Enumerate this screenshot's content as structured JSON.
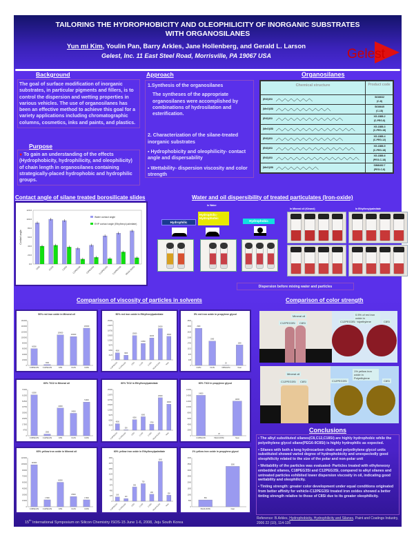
{
  "header": {
    "title_line1": "TAILORING THE HYDROPHOBICITY AND OLEOPHILICITY OF INORGANIC SUBSTRATES",
    "title_line2": "WITH ORGANOSILANES",
    "presenting_author": "Yun mi Kim",
    "other_authors": ", Youlin Pan, Barry Arkles, Jane Hollenberg, and Gerald L. Larson",
    "affiliation": "Gelest, Inc. 11 East Steel Road, Morrisville, PA 19067 USA",
    "logo_text": "Gelest"
  },
  "background": {
    "title": "Background",
    "text": "The goal of surface modification of inorganic substrates, in particular pigments and fillers, is to control the dispersion and wetting properties in various vehicles. The use of organosilanes has been an effective method to achieve this goal for a variety applications including chromatographic columns, cosmetics, inks and paints, and plastics."
  },
  "purpose": {
    "title": "Purpose",
    "text": "To gain an understanding of the effects (Hydrophobicity, hydrophilicity, and oleophilicity) of chain length in organosilanes containing strategically-placed hydrophobic and hydrophilic groups."
  },
  "approach": {
    "title": "Approach",
    "step1": "1.Synthesis of the organosilanes",
    "step1_text": "The syntheses of the appropriate organosilanes were accomplished  by combinations of hydrosilation and esterification.",
    "step2": "2. Characterization of the silane-treated inorganic substrates",
    "bullets": [
      "Hydrophobicity and oleophilicity- contact angle and dispersability",
      "Wettability- dispersion viscosity and color strength"
    ]
  },
  "organosilanes": {
    "title": "Organosilanes",
    "col_structure": "Chemical structure",
    "col_code": "Product code",
    "rows": [
      {
        "prefix": "(EtO)3Si",
        "code": "SIO6632",
        "sub": "(C-8)"
      },
      {
        "prefix": "(MeO)3Si",
        "code": "SIO6645",
        "sub": "(C-18)"
      },
      {
        "prefix": "(EtO)3Si",
        "code": "XG-1888-2",
        "sub": "(C-PEG-8)"
      },
      {
        "prefix": "(MeO)3Si",
        "code": "XG-1888-3",
        "sub": "(C-PEG-18)"
      },
      {
        "prefix": "(EtO)3Si",
        "code": "XG-1888-4",
        "sub": "(C-PEG-12)"
      },
      {
        "prefix": "(EtO)3Si",
        "code": "XG-1888-5",
        "sub": "(C-PEG-18)"
      },
      {
        "prefix": "(EtO)3Si",
        "code": "XG-1888-6",
        "sub": "(PEG-C-18)"
      },
      {
        "prefix": "(MeO)3Si",
        "code": "SIM6492.7",
        "sub": "(PEG-C-8)"
      }
    ]
  },
  "contact_angle": {
    "title": "Contact angle of silane treated borosilicate slides"
  },
  "chart_data": [
    {
      "type": "bar",
      "title": "",
      "ylabel": "Contact angle",
      "ylim": [
        0,
        120
      ],
      "yticks": [
        "0.0",
        "20.0",
        "40.0",
        "60.0",
        "80.0",
        "100.0",
        "120.0"
      ],
      "categories": [
        "C8Si",
        "C12Si",
        "C18Si",
        "C1PEG3Si",
        "C8PEG3Si",
        "C12PEG3Si",
        "C18PEG3Si",
        "PEG6-9C8Si"
      ],
      "series": [
        {
          "name": "Water contact angle",
          "color": "#9a9af0",
          "values": [
            92,
            100,
            97,
            35,
            42,
            63,
            69,
            74
          ]
        },
        {
          "name": "EHP contact angle (Ethylhexyl palmitate)",
          "color": "#10e010",
          "values": [
            40,
            42,
            38,
            11,
            15,
            12,
            27,
            14
          ]
        }
      ],
      "legend": "top-right"
    },
    {
      "type": "bar",
      "title": "50% red iron oxide in Mineral oil",
      "ylim": [
        0,
        160000
      ],
      "categories": [
        "C18PEG3Si",
        "C12PEG3Si",
        "C8Si",
        "C12Si",
        "C18Si"
      ],
      "values": [
        60000,
        3000,
        109000,
        103000,
        133000
      ]
    },
    {
      "type": "bar",
      "title": "50% red iron oxide in Ethylhexylpalmitate",
      "ylim": [
        0,
        25000
      ],
      "categories": [
        "C18PEG3Si",
        "C12PEG3Si",
        "C8Si",
        "C12Si",
        "C18Si",
        "PEG6-9C8Si",
        "Neat"
      ],
      "values": [
        4500,
        3000,
        15500,
        10500,
        14000,
        20000,
        15000
      ]
    },
    {
      "type": "bar",
      "title": "5% red iron oxide in propylene glycol",
      "ylim": [
        0,
        3500
      ],
      "categories": [
        "C18Si",
        "C12Si",
        "C8PEG3Si",
        "Neat"
      ],
      "values": [
        2900,
        1900,
        20,
        1600
      ]
    },
    {
      "type": "bar",
      "title": "60% TiO2 in Mineral oil",
      "ylim": [
        0,
        70000
      ],
      "categories": [
        "C18PEG3Si",
        "C12PEG3Si",
        "C8Si",
        "C12Si",
        "C18Si"
      ],
      "values": [
        62000,
        2500,
        42000,
        34000,
        51000
      ]
    },
    {
      "type": "bar",
      "title": "60% TiO2 in Ethylhexylpalmitate",
      "ylim": [
        0,
        25000
      ],
      "categories": [
        "C18PEG3Si",
        "C12PEG3Si",
        "C8Si",
        "C12Si",
        "C18Si",
        "PEG6-9C8Si",
        "Neat"
      ],
      "values": [
        4000,
        300,
        6500,
        8300,
        3700,
        20000,
        16000
      ]
    },
    {
      "type": "bar",
      "title": "60% TiO2 in propylene glycol",
      "ylim": [
        0,
        16000
      ],
      "categories": [
        "C18PEG3Si",
        "PEG6-9C8Si",
        "Neat"
      ],
      "values": [
        14000,
        20,
        12000
      ]
    },
    {
      "type": "bar",
      "title": "60% yellow iron oxide in Mineral oil",
      "ylim": [
        0,
        120000
      ],
      "categories": [
        "C18PEG3Si",
        "C12PEG3Si",
        "C8Si",
        "C12Si",
        "C18Si"
      ],
      "values": [
        103000,
        17000,
        60000,
        25000,
        17000
      ]
    },
    {
      "type": "bar",
      "title": "60% yellow iron oxide in Ethylhexylpalmitate",
      "ylim": [
        0,
        1800
      ],
      "categories": [
        "C18PEG3Si",
        "C12PEG3Si",
        "C8Si",
        "C12Si",
        "C18Si",
        "PEG6-9C8Si",
        "Neat"
      ],
      "values": [
        180,
        110,
        590,
        730,
        290,
        1650,
        250
      ]
    },
    {
      "type": "bar",
      "title": "1% yellow iron oxide in propylene glycol",
      "ylim": [
        0,
        4000
      ],
      "categories": [
        "PEG6-9C8Si",
        "Neat"
      ],
      "values": [
        560,
        3300
      ]
    }
  ],
  "dispersibility": {
    "title": "Water  and oil dispersibility of treated particulates (Iron-oxide)",
    "in_water": "In Water",
    "hydrophilic": "Hydrophilic",
    "hydrophilic_hydrophobic_1": "Hydrophilic-",
    "hydrophilic_hydrophobic_2": "Hydrophobic",
    "hydrophobic": "Hydrophobic",
    "in_mineral_oil": "In Mineral oil (Klearol)",
    "in_ehp": "In Ethylhexylpalmitate",
    "caption": "Dispersion before mixing  water and particles"
  },
  "viscosity": {
    "title": "Comparison of viscosity of particles in solvents"
  },
  "color_strength": {
    "title": "Comparison of color strength",
    "mineral_oil": "Mineral oil",
    "c12": "C12PEG3Si",
    "c8": "C8Si",
    "red_pe": "0.5% of red iron oxide in Polyethylene",
    "yellow_pe": "1% yellow iron oxide in Polyethylene"
  },
  "conclusions": {
    "title": "Conclusions",
    "items": [
      "The alkyl substituted silanes(C8,C12,C18Si) are highly hydrophobic while the polyethylene glycol silane(PEG6-9C8Si) is highly hydrophilic as expected.",
      "Silanes with both a long hydrocarbon chain and polyethylene glycol units substituted showed varied degree of hydrophobicity and unexpectedly good oleophilicity related to the size of the polar and non-polar unit",
      "Wettability of the particles was evaluated- Particles treated with ethyleneoxy embedded silanes, C18PEG3Si and C12PEG3Si, compared to alkyl silanes and untreated particles exhibited lower dispersion viscosity in oil, indicating good wettability and oleophilicity.",
      "Tinting strength: greater color development under equal conditions originated from better affinity for vehicle-C12PEG3Si treated iron oxides showed a better tinting strength relative to those of C8Si due to its greater oleophilicity."
    ],
    "reference_prefix": "Reference: B.Arkles, ",
    "reference_title": "Hydrophobicity, Hydrophilicity and Silanes",
    "reference_suffix": ", Paint and Coatings Industry, 2006 22 (10), 114-135"
  },
  "footer": {
    "sup": "15",
    "th": "th",
    "text": " International Symposium on Silicon Chemistry ISOS-15 June 1-6, 2008, Jeju South Korea"
  }
}
